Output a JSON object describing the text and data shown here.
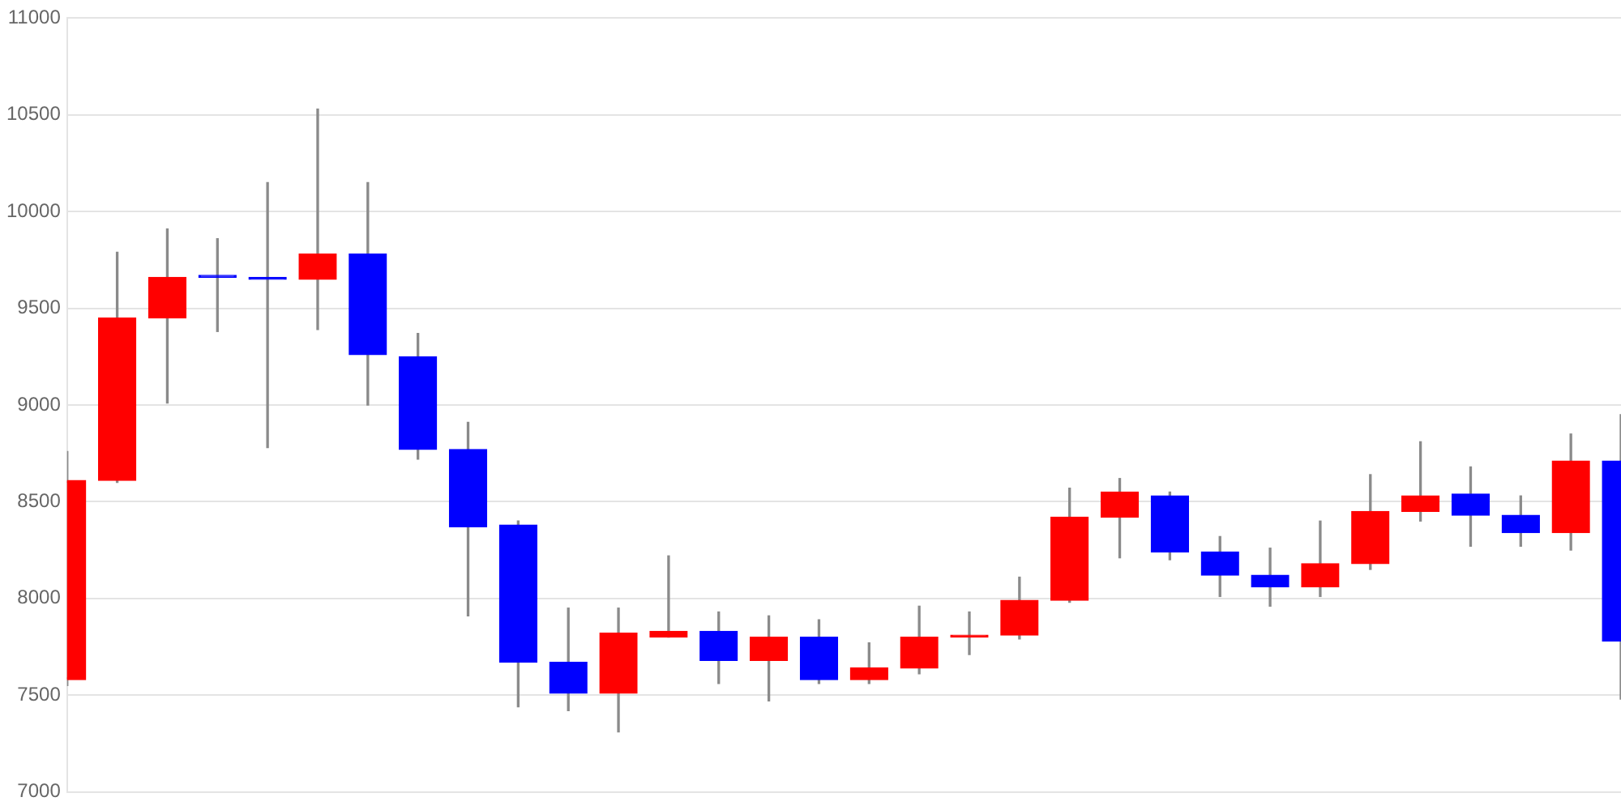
{
  "chart_data": {
    "type": "candlestick",
    "categories": [
      null,
      null,
      null,
      null,
      null,
      null,
      null,
      null,
      null,
      null,
      null,
      null,
      null,
      null,
      null,
      null,
      null,
      null,
      null,
      null,
      null,
      null,
      null,
      null,
      null,
      null,
      null,
      null,
      null,
      null,
      null,
      null
    ],
    "ohlc": [
      [
        7580,
        8760,
        7550,
        8610
      ],
      [
        8610,
        9790,
        8600,
        9450
      ],
      [
        9450,
        9910,
        9010,
        9660
      ],
      [
        9670,
        9860,
        9380,
        9660
      ],
      [
        9660,
        10150,
        8780,
        9650
      ],
      [
        9650,
        10530,
        9390,
        9780
      ],
      [
        9780,
        10150,
        9000,
        9260
      ],
      [
        9250,
        9370,
        8720,
        8770
      ],
      [
        8770,
        8910,
        7910,
        8370
      ],
      [
        8380,
        8400,
        7440,
        7670
      ],
      [
        7670,
        7950,
        7420,
        7510
      ],
      [
        7510,
        7950,
        7310,
        7820
      ],
      [
        7800,
        8220,
        7800,
        7830
      ],
      [
        7830,
        7930,
        7560,
        7680
      ],
      [
        7680,
        7910,
        7470,
        7800
      ],
      [
        7800,
        7890,
        7560,
        7580
      ],
      [
        7580,
        7770,
        7560,
        7640
      ],
      [
        7640,
        7960,
        7610,
        7800
      ],
      [
        7800,
        7930,
        7710,
        7810
      ],
      [
        7810,
        8110,
        7790,
        7990
      ],
      [
        7990,
        8570,
        7980,
        8420
      ],
      [
        8420,
        8620,
        8210,
        8550
      ],
      [
        8530,
        8550,
        8200,
        8240
      ],
      [
        8240,
        8320,
        8010,
        8120
      ],
      [
        8120,
        8260,
        7960,
        8060
      ],
      [
        8060,
        8400,
        8010,
        8180
      ],
      [
        8180,
        8640,
        8150,
        8450
      ],
      [
        8450,
        8810,
        8400,
        8530
      ],
      [
        8540,
        8680,
        8270,
        8430
      ],
      [
        8430,
        8530,
        8270,
        8340
      ],
      [
        8340,
        8850,
        8250,
        8710
      ],
      [
        8710,
        8950,
        7480,
        7780
      ]
    ],
    "colors": [
      "#ff0000",
      "#ff0000",
      "#ff0000",
      "#0000ff",
      "#0000ff",
      "#ff0000",
      "#0000ff",
      "#0000ff",
      "#0000ff",
      "#0000ff",
      "#0000ff",
      "#ff0000",
      "#ff0000",
      "#0000ff",
      "#ff0000",
      "#0000ff",
      "#ff0000",
      "#ff0000",
      "#ff0000",
      "#ff0000",
      "#ff0000",
      "#ff0000",
      "#0000ff",
      "#0000ff",
      "#0000ff",
      "#ff0000",
      "#ff0000",
      "#ff0000",
      "#0000ff",
      "#0000ff",
      "#ff0000",
      "#0000ff"
    ],
    "ylim": [
      7000,
      11000
    ],
    "yticks": [
      7000,
      7500,
      8000,
      8500,
      9000,
      9500,
      10000,
      10500,
      11000
    ],
    "grid": "y",
    "tick_labels": "y"
  }
}
